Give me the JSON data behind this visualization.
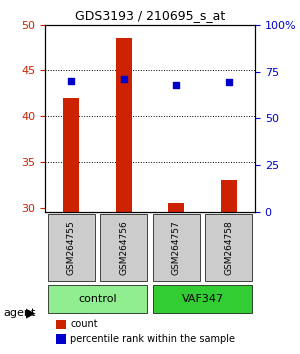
{
  "title": "GDS3193 / 210695_s_at",
  "samples": [
    "GSM264755",
    "GSM264756",
    "GSM264757",
    "GSM264758"
  ],
  "counts": [
    42.0,
    48.5,
    30.5,
    33.0
  ],
  "percentile_ranks": [
    70.0,
    71.0,
    68.0,
    69.5
  ],
  "groups": [
    "control",
    "control",
    "VAF347",
    "VAF347"
  ],
  "group_colors": {
    "control": "#90EE90",
    "VAF347": "#32CD32"
  },
  "bar_color": "#CC2200",
  "dot_color": "#0000CC",
  "left_ylim": [
    29.5,
    50
  ],
  "left_yticks": [
    30,
    35,
    40,
    45,
    50
  ],
  "right_ylim": [
    0,
    25
  ],
  "right_yticks": [
    0,
    25,
    50,
    75,
    100
  ],
  "right_yticklabels": [
    "0",
    "25",
    "50",
    "75",
    "100%"
  ],
  "ylabel_left_color": "#CC2200",
  "ylabel_right_color": "#0000CC",
  "grid_color": "#000000",
  "background_color": "#ffffff",
  "sample_box_color": "#cccccc",
  "legend_count_color": "#CC2200",
  "legend_pct_color": "#0000CC"
}
